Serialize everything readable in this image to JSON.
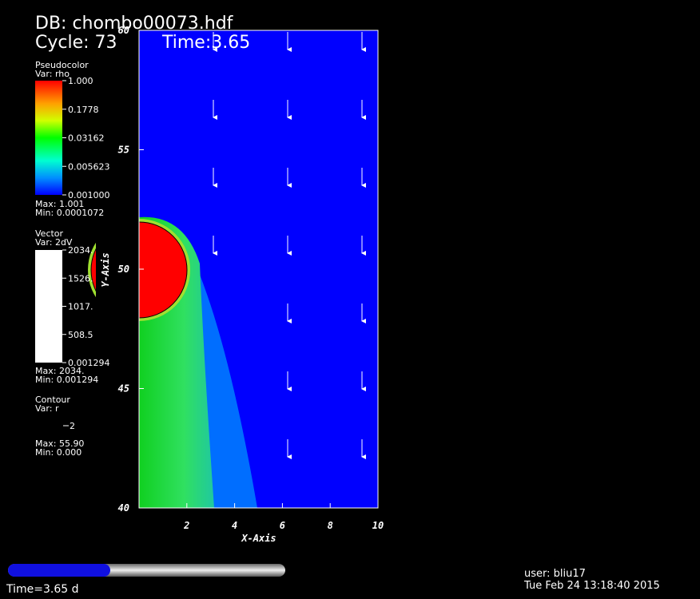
{
  "header": {
    "db": "DB: chombo00073.hdf",
    "cycle": "Cycle: 73",
    "time": "Time:3.65"
  },
  "pseudocolor": {
    "title": "Pseudocolor",
    "var": "Var: rho",
    "ticks": [
      "1.000",
      "0.1778",
      "0.03162",
      "0.005623",
      "0.001000"
    ],
    "max": "Max:  1.001",
    "min": "Min:  0.0001072"
  },
  "vector": {
    "title": "Vector",
    "var": "Var: 2dV",
    "ticks": [
      "2034.",
      "1526.",
      "1017.",
      "508.5",
      "0.001294"
    ],
    "max": "Max:  2034.",
    "min": "Min:  0.001294"
  },
  "contour": {
    "title": "Contour",
    "var": "Var: r",
    "level": "2",
    "max": "Max:  55.90",
    "min": "Min:  0.000"
  },
  "plot": {
    "xlabel": "X-Axis",
    "ylabel": "Y-Axis",
    "xlim": [
      0,
      10
    ],
    "ylim": [
      40,
      60
    ],
    "xticks": [
      2,
      4,
      6,
      8,
      10
    ],
    "yticks": [
      40,
      45,
      50,
      55,
      60
    ]
  },
  "footer": {
    "time": "Time=3.65 d",
    "user": "user: bliu17",
    "date": "Tue Feb 24 13:18:40 2015"
  }
}
